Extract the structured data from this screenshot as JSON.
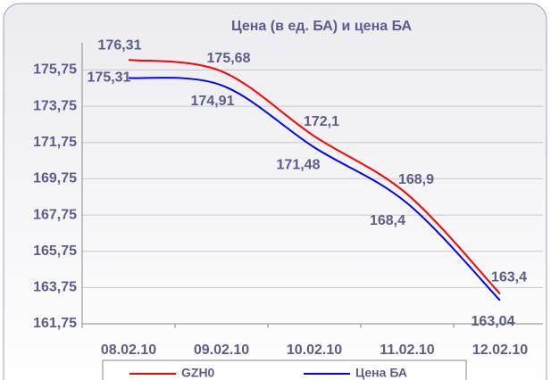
{
  "chart_data": {
    "type": "line",
    "title": "Цена (в ед. БА) и цена БА",
    "categories": [
      "08.02.10",
      "09.02.10",
      "10.02.10",
      "11.02.10",
      "12.02.10"
    ],
    "series": [
      {
        "name": "GZH0",
        "color": "#ff0000",
        "values": [
          176.31,
          175.68,
          172.1,
          168.9,
          163.4
        ],
        "value_labels": [
          "176,31",
          "175,68",
          "172,1",
          "168,9",
          "163,4"
        ]
      },
      {
        "name": "Цена БА",
        "color": "#0000ff",
        "values": [
          175.31,
          174.91,
          171.48,
          168.4,
          163.04
        ],
        "value_labels": [
          "175,31",
          "174,91",
          "171,48",
          "168,4",
          "163,04"
        ]
      }
    ],
    "ylim": [
      161.75,
      177.25
    ],
    "yticks": [
      {
        "value": 161.75,
        "label": "161,75"
      },
      {
        "value": 163.75,
        "label": "163,75"
      },
      {
        "value": 165.75,
        "label": "165,75"
      },
      {
        "value": 167.75,
        "label": "167,75"
      },
      {
        "value": 169.75,
        "label": "169,75"
      },
      {
        "value": 171.75,
        "label": "171,75"
      },
      {
        "value": 173.75,
        "label": "173,75"
      },
      {
        "value": 175.75,
        "label": "175,75"
      }
    ],
    "grid": true
  }
}
